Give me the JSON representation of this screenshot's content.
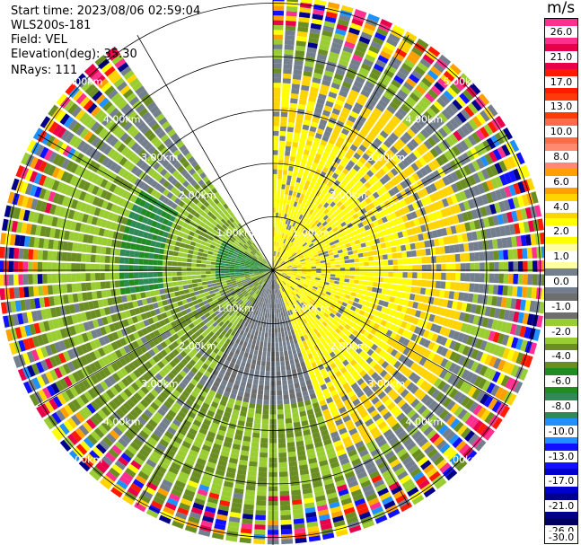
{
  "header": {
    "start_time": "Start time: 2023/08/06 02:59:04",
    "instrument": "WLS200s-181",
    "field": "Field: VEL",
    "elevation": "Elevation(deg): 35.30",
    "nrays": "NRays: 111"
  },
  "colorbar": {
    "unit": "m/s",
    "labels": [
      "26.0",
      "21.0",
      "17.0",
      "13.0",
      "10.0",
      "8.0",
      "6.0",
      "4.0",
      "2.0",
      "1.0",
      "0.0",
      "-1.0",
      "-2.0",
      "-4.0",
      "-6.0",
      "-8.0",
      "-10.0",
      "-13.0",
      "-17.0",
      "-21.0",
      "-26.0",
      "-30.0"
    ],
    "colors": [
      "#ff2f8f",
      "#e8004b",
      "#ff1a00",
      "#ff3a0a",
      "#ff6a4a",
      "#ff8a70",
      "#ffa000",
      "#ffd400",
      "#ffff00",
      "#ffffa0",
      "#747f8e",
      "#6e6e6e",
      "#9acd32",
      "#6b8e23",
      "#228b22",
      "#2e8b57",
      "#1e90ff",
      "#1010ff",
      "#0000cd",
      "#00008b",
      "#000060"
    ]
  },
  "chart_data": {
    "type": "ppi",
    "field": "VEL",
    "units": "m/s",
    "range_rings_km": [
      1,
      2,
      3,
      4,
      5
    ],
    "ring_labels": {
      "r1": "1.00km",
      "r2": "2.00km",
      "r3": "3.00km",
      "r4": "4.00km",
      "r5": "5.00km"
    },
    "color_scale_min": -30,
    "color_scale_max": 30,
    "nrays": 111,
    "elevation_deg": 35.3,
    "missing_sector_deg": [
      -35,
      0
    ]
  }
}
